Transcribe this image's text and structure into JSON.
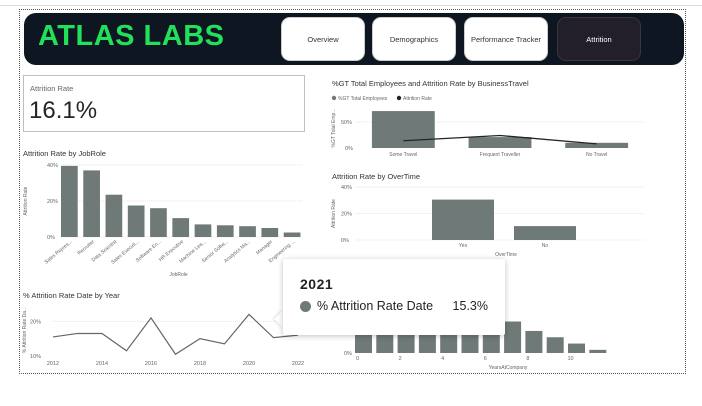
{
  "header": {
    "logo": "ATLAS LABS",
    "nav": [
      "Overview",
      "Demographics",
      "Performance Tracker",
      "Attrition"
    ],
    "active": "Attrition"
  },
  "kpi": {
    "label": "Attrition Rate",
    "value": "16.1%"
  },
  "colors": {
    "bar": "#6f7a78",
    "header_bg": "#0e1621",
    "logo": "#22e05a",
    "line": "#252423"
  },
  "chart_data": [
    {
      "type": "bar",
      "title": "Attrition Rate by JobRole",
      "xlabel": "JobRole",
      "ylabel": "Attrition Rate",
      "ylim": [
        0,
        40
      ],
      "yticks": [
        "40%",
        "20%",
        "0%"
      ],
      "categories": [
        "Sales Repres...",
        "Recruiter",
        "Data Scientist",
        "Sales Executi...",
        "Software En...",
        "HR Executive",
        "Machine Lea...",
        "Senior Softw...",
        "Analytics Ma...",
        "Manager",
        "Engineering ..."
      ],
      "values": [
        39.5,
        37,
        23.5,
        17.5,
        16,
        10.5,
        7,
        6.5,
        6,
        5,
        2.5
      ]
    },
    {
      "type": "bar",
      "title": "%GT Total Employees and Attrition Rate by BusinessTravel",
      "ylabel": "%GT Total Emp...",
      "ylim": [
        0,
        75
      ],
      "yticks": [
        "50%",
        "0%"
      ],
      "legend": [
        "%GT Total Employees",
        "Attrition Rate"
      ],
      "categories": [
        "Some Travel",
        "Frequent Traveller",
        "No Travel"
      ],
      "values": [
        71,
        21,
        10
      ],
      "line_values": [
        14,
        24,
        8
      ]
    },
    {
      "type": "bar",
      "title": "Attrition Rate by OverTime",
      "xlabel": "OverTime",
      "ylabel": "Attrition Rate",
      "ylim": [
        0,
        40
      ],
      "yticks": [
        "40%",
        "20%",
        "0%"
      ],
      "categories": [
        "Yes",
        "No"
      ],
      "values": [
        30.5,
        10.5
      ]
    },
    {
      "type": "line",
      "title": "% Attrition Rate Date by Year",
      "ylabel": "% Attrition Rate Da...",
      "ylim": [
        10,
        25
      ],
      "yticks": [
        "20%",
        "10%"
      ],
      "xticks": [
        "2012",
        "2014",
        "2016",
        "2018",
        "2020",
        "2022"
      ],
      "x": [
        2012,
        2013,
        2014,
        2015,
        2016,
        2017,
        2018,
        2019,
        2020,
        2021,
        2022
      ],
      "values": [
        15.5,
        16.5,
        16.5,
        11.5,
        21,
        10.5,
        15,
        13.5,
        22,
        15.3,
        16
      ]
    },
    {
      "type": "bar",
      "xlabel": "YearsAtCompany",
      "yticks": [
        "0%"
      ],
      "xticks": [
        "0",
        "2",
        "4",
        "6",
        "8",
        "10"
      ],
      "values": [
        36,
        36,
        36,
        36,
        36,
        36,
        30,
        20,
        14,
        10,
        6,
        2
      ]
    }
  ],
  "tooltip": {
    "title": "2021",
    "label": "% Attrition Rate Date",
    "value": "15.3%"
  }
}
